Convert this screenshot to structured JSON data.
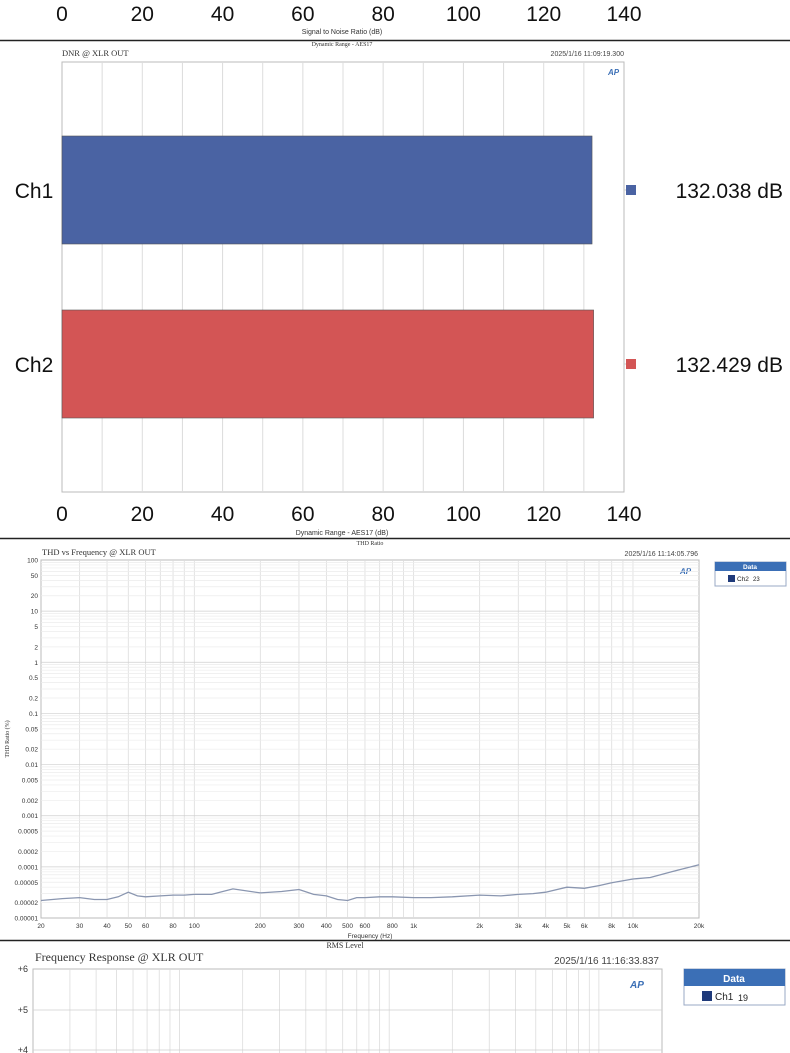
{
  "colors": {
    "ch1_blue": "#4a63a3",
    "ch2_red": "#d35555",
    "thd_line": "#8a96b0",
    "grid": "#dcdcdc",
    "data_header": "#3b6fb6",
    "ch2_marker": "#1f3a7a"
  },
  "snr_strip": {
    "ticks": [
      "0",
      "20",
      "40",
      "60",
      "80",
      "100",
      "120",
      "140"
    ],
    "xlabel": "Signal to Noise Ratio (dB)"
  },
  "dnr_panel": {
    "top_title": "Dynamic Range - AES17",
    "title": "DNR @ XLR OUT",
    "timestamp": "2025/1/16 11:09:19.300",
    "logo": "AP",
    "xlabel": "Dynamic Range - AES17 (dB)"
  },
  "thd_panel": {
    "top_title": "THD Ratio",
    "title": "THD vs Frequency @ XLR OUT",
    "timestamp": "2025/1/16 11:14:05.796",
    "logo": "AP",
    "ylabel": "THD Ratio (%)",
    "xlabel": "Frequency (Hz)",
    "legend_header": "Data",
    "legend_item": "Ch2",
    "legend_item_num": "23"
  },
  "fr_panel": {
    "top_title": "RMS Level",
    "title": "Frequency Response @ XLR OUT",
    "timestamp": "2025/1/16 11:16:33.837",
    "logo": "AP",
    "legend_header": "Data",
    "legend_item": "Ch1",
    "legend_item_num": "19",
    "y_ticks": [
      "+6",
      "+5",
      "+4"
    ]
  },
  "chart_data": [
    {
      "type": "bar",
      "orientation": "horizontal",
      "title": "DNR @ XLR OUT",
      "subtitle": "Dynamic Range - AES17",
      "xlabel": "Dynamic Range - AES17 (dB)",
      "categories": [
        "Ch1",
        "Ch2"
      ],
      "values": [
        132.038,
        132.429
      ],
      "value_labels": [
        "132.038  dB",
        "132.429  dB"
      ],
      "colors": [
        "#4a63a3",
        "#d35555"
      ],
      "xlim": [
        0,
        140
      ],
      "x_ticks": [
        "0",
        "20",
        "40",
        "60",
        "80",
        "100",
        "120",
        "140"
      ],
      "grid": true
    },
    {
      "type": "line",
      "title": "THD vs Frequency @ XLR OUT",
      "subtitle": "THD Ratio",
      "xlabel": "Frequency (Hz)",
      "ylabel": "THD Ratio (%)",
      "x_scale": "log",
      "y_scale": "log",
      "xlim": [
        20,
        20000
      ],
      "ylim": [
        1e-05,
        100
      ],
      "x_ticks": [
        "20",
        "30",
        "40",
        "50",
        "60",
        "80",
        "100",
        "200",
        "300",
        "400",
        "500",
        "600",
        "800",
        "1k",
        "2k",
        "3k",
        "4k",
        "5k",
        "6k",
        "8k",
        "10k",
        "20k"
      ],
      "x_tick_values": [
        20,
        30,
        40,
        50,
        60,
        80,
        100,
        200,
        300,
        400,
        500,
        600,
        800,
        1000,
        2000,
        3000,
        4000,
        5000,
        6000,
        8000,
        10000,
        20000
      ],
      "y_ticks": [
        "100",
        "50",
        "20",
        "10",
        "5",
        "2",
        "1",
        "0.5",
        "0.2",
        "0.1",
        "0.05",
        "0.02",
        "0.01",
        "0.005",
        "0.002",
        "0.001",
        "0.0005",
        "0.0002",
        "0.0001",
        "0.00005",
        "0.00002",
        "0.00001"
      ],
      "y_tick_values": [
        100,
        50,
        20,
        10,
        5,
        2,
        1,
        0.5,
        0.2,
        0.1,
        0.05,
        0.02,
        0.01,
        0.005,
        0.002,
        0.001,
        0.0005,
        0.0002,
        0.0001,
        5e-05,
        2e-05,
        1e-05
      ],
      "legend": "top-right",
      "series": [
        {
          "name": "Ch2",
          "x": [
            20,
            25,
            30,
            35,
            40,
            45,
            50,
            55,
            60,
            70,
            80,
            90,
            100,
            120,
            150,
            200,
            250,
            300,
            350,
            400,
            450,
            500,
            550,
            600,
            700,
            800,
            1000,
            1200,
            1500,
            2000,
            2500,
            3000,
            3500,
            4000,
            5000,
            6000,
            7000,
            8000,
            10000,
            12000,
            15000,
            20000
          ],
          "y": [
            2.2e-05,
            2.4e-05,
            2.5e-05,
            2.3e-05,
            2.3e-05,
            2.6e-05,
            3.2e-05,
            2.7e-05,
            2.6e-05,
            2.7e-05,
            2.8e-05,
            2.8e-05,
            2.9e-05,
            2.9e-05,
            3.7e-05,
            3.1e-05,
            3.3e-05,
            3.6e-05,
            2.9e-05,
            2.7e-05,
            2.3e-05,
            2.2e-05,
            2.5e-05,
            2.5e-05,
            2.6e-05,
            2.6e-05,
            2.5e-05,
            2.5e-05,
            2.6e-05,
            2.8e-05,
            2.7e-05,
            2.9e-05,
            3e-05,
            3.2e-05,
            4e-05,
            3.8e-05,
            4.3e-05,
            4.9e-05,
            5.8e-05,
            6.2e-05,
            8e-05,
            0.00011
          ]
        }
      ],
      "grid": true
    }
  ]
}
